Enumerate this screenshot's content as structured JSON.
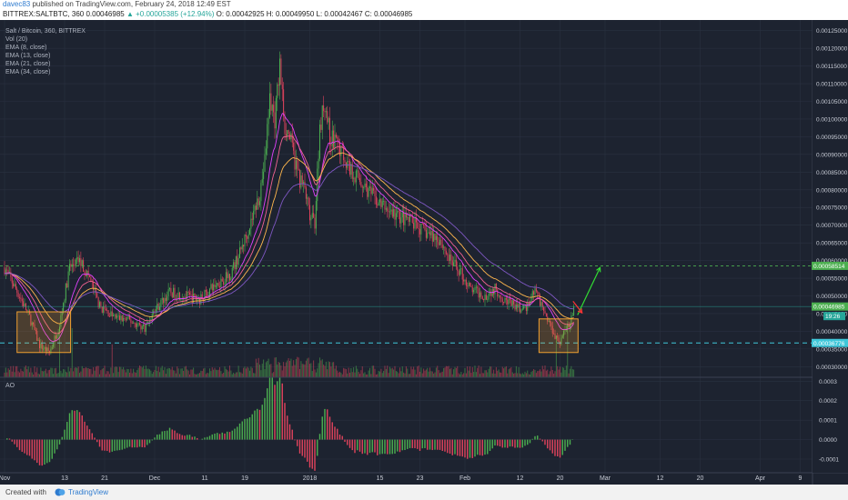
{
  "header": {
    "author": "davec83",
    "published_text": " published on TradingView.com, February 24, 2018 12:49 EST",
    "symbol_line": "BITTREX:SALTBTC, 360",
    "last": "0.00046985",
    "change": "▲ +0.00005385 (+12.94%)",
    "ohlc": "O: 0.00042925  H: 0.00049950  L: 0.00042467  C: 0.00046985"
  },
  "legend": {
    "title": "Salt / Bitcoin, 360, BITTREX",
    "lines": [
      "Vol (20)",
      "EMA (8, close)",
      "EMA (13, close)",
      "EMA (21, close)",
      "EMA (34, close)"
    ]
  },
  "ao_label": "AO",
  "footer": {
    "created_with": "Created with",
    "brand": "TradingView"
  },
  "colors": {
    "background": "#1d2330",
    "grid": "#2a3140",
    "up": "#4caf50",
    "down": "#e0435c",
    "ema8": "#e040fb",
    "ema13": "#f06292",
    "ema21": "#ffb74d",
    "ema34": "#7e57c2",
    "box": "#f0a030",
    "arrow_up": "#33dd33",
    "arrow_down": "#ff3333",
    "resistance": "#4caf50",
    "support": "#3fc7d9"
  },
  "chart_data": {
    "type": "candlestick",
    "price_axis": {
      "ticks": [
        "0.00125000",
        "0.00120000",
        "0.00115000",
        "0.00110000",
        "0.00105000",
        "0.00100000",
        "0.00095000",
        "0.00090000",
        "0.00085000",
        "0.00080000",
        "0.00075000",
        "0.00070000",
        "0.00065000",
        "0.00060000",
        "0.00055000",
        "0.00050000",
        "0.00045000",
        "0.00040000",
        "0.00035000",
        "0.00030000"
      ],
      "tick_values": [
        0.00125,
        0.0012,
        0.00115,
        0.0011,
        0.00105,
        0.001,
        0.00095,
        0.0009,
        0.00085,
        0.0008,
        0.00075,
        0.0007,
        0.00065,
        0.0006,
        0.00055,
        0.0005,
        0.00045,
        0.0004,
        0.00035,
        0.0003
      ],
      "range": [
        0.00027,
        0.00128
      ]
    },
    "ao_axis": {
      "ticks": [
        "0.0003",
        "0.0002",
        "0.0001",
        "0.0000",
        "-0.0001"
      ],
      "tick_values": [
        0.0003,
        0.0002,
        0.0001,
        0.0,
        -0.0001
      ],
      "range": [
        -0.00017,
        0.00032
      ]
    },
    "date_axis": {
      "labels": [
        "Nov",
        "13",
        "21",
        "Dec",
        "11",
        "19",
        "2018",
        "15",
        "23",
        "Feb",
        "12",
        "20",
        "Mar",
        "12",
        "20",
        "Apr",
        "9"
      ],
      "label_days": [
        0,
        12,
        20,
        30,
        40,
        48,
        61,
        75,
        83,
        92,
        103,
        111,
        120,
        131,
        139,
        151,
        159
      ]
    },
    "data_days": 114,
    "anchors": [
      [
        0,
        0.00058
      ],
      [
        3,
        0.0005
      ],
      [
        5,
        0.00044
      ],
      [
        7,
        0.00036
      ],
      [
        9,
        0.00034
      ],
      [
        11,
        0.00042
      ],
      [
        13,
        0.00058
      ],
      [
        15,
        0.0006
      ],
      [
        17,
        0.00055
      ],
      [
        19,
        0.00047
      ],
      [
        22,
        0.00044
      ],
      [
        25,
        0.00043
      ],
      [
        28,
        0.00041
      ],
      [
        30,
        0.00046
      ],
      [
        33,
        0.00051
      ],
      [
        36,
        0.0005
      ],
      [
        39,
        0.00049
      ],
      [
        42,
        0.00053
      ],
      [
        45,
        0.00056
      ],
      [
        47,
        0.00062
      ],
      [
        49,
        0.0007
      ],
      [
        51,
        0.00079
      ],
      [
        52,
        0.00088
      ],
      [
        53,
        0.00106
      ],
      [
        54,
        0.001
      ],
      [
        55,
        0.00115
      ],
      [
        56,
        0.00098
      ],
      [
        57,
        0.00095
      ],
      [
        58,
        0.00088
      ],
      [
        59,
        0.00083
      ],
      [
        60,
        0.0008
      ],
      [
        61,
        0.00072
      ],
      [
        62,
        0.00071
      ],
      [
        63,
        0.00098
      ],
      [
        64,
        0.00105
      ],
      [
        65,
        0.00095
      ],
      [
        67,
        0.00092
      ],
      [
        69,
        0.00086
      ],
      [
        71,
        0.00083
      ],
      [
        73,
        0.00079
      ],
      [
        75,
        0.00076
      ],
      [
        78,
        0.00073
      ],
      [
        81,
        0.00071
      ],
      [
        84,
        0.00068
      ],
      [
        87,
        0.00066
      ],
      [
        89,
        0.0006
      ],
      [
        91,
        0.00057
      ],
      [
        93,
        0.00052
      ],
      [
        96,
        0.0005
      ],
      [
        98,
        0.00052
      ],
      [
        100,
        0.00049
      ],
      [
        102,
        0.00047
      ],
      [
        104,
        0.00046
      ],
      [
        106,
        0.00052
      ],
      [
        108,
        0.00045
      ],
      [
        110,
        0.00039
      ],
      [
        111,
        0.00037
      ],
      [
        112,
        0.0004
      ],
      [
        113,
        0.00043
      ],
      [
        114,
        0.00047
      ]
    ],
    "last_price": 0.00046985,
    "resistance_level": 0.000585,
    "support_level": 0.000367,
    "price_tags": [
      {
        "label": "0.00058514",
        "value": 0.000585,
        "color": "#4caf50"
      },
      {
        "label": "0.00046985",
        "value": 0.00047,
        "color": "#4caf50"
      },
      {
        "label": "0.00036776",
        "value": 0.000367,
        "color": "#3fc7d9"
      },
      {
        "label": "19:26",
        "value": 0.000443,
        "color": "#26a69a"
      }
    ],
    "annotation_boxes": [
      {
        "day_start": 2.5,
        "day_end": 13.2,
        "top": 0.000455,
        "bottom": 0.00034
      },
      {
        "day_start": 106.8,
        "day_end": 114.6,
        "top": 0.000435,
        "bottom": 0.00034
      }
    ],
    "arrows": [
      {
        "direction": "up",
        "from_day": 114.5,
        "from_value": 0.000446,
        "to_day": 119,
        "to_value": 0.00058
      },
      {
        "direction": "down",
        "from_day": 113.6,
        "from_value": 0.000485,
        "to_day": 115.4,
        "to_value": 0.000452
      }
    ]
  }
}
